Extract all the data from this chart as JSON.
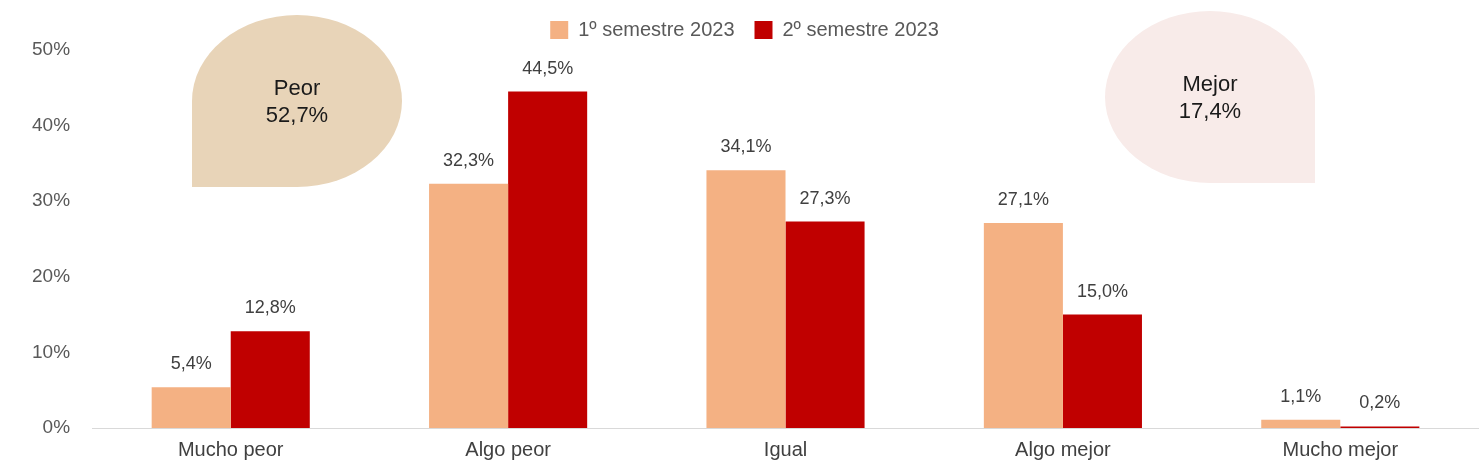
{
  "chart_data": {
    "type": "bar",
    "categories": [
      "Mucho peor",
      "Algo peor",
      "Igual",
      "Algo mejor",
      "Mucho mejor"
    ],
    "series": [
      {
        "name": "1º semestre 2023",
        "color": "#f4b183",
        "values": [
          5.4,
          32.3,
          34.1,
          27.1,
          1.1
        ],
        "value_labels": [
          "5,4%",
          "32,3%",
          "34,1%",
          "27,1%",
          "1,1%"
        ]
      },
      {
        "name": "2º semestre 2023",
        "color": "#c00000",
        "values": [
          12.8,
          44.5,
          27.3,
          15.0,
          0.2
        ],
        "value_labels": [
          "12,8%",
          "44,5%",
          "27,3%",
          "15,0%",
          "0,2%"
        ]
      }
    ],
    "ylim": [
      0,
      50
    ],
    "yticks": [
      {
        "value": 0,
        "label": "0%"
      },
      {
        "value": 10,
        "label": "10%"
      },
      {
        "value": 20,
        "label": "20%"
      },
      {
        "value": 30,
        "label": "30%"
      },
      {
        "value": 40,
        "label": "40%"
      },
      {
        "value": 50,
        "label": "50%"
      }
    ],
    "annotations": [
      "Peor\n52,7%",
      "Mejor\n17,4%"
    ],
    "legend": "top",
    "grid": false
  }
}
